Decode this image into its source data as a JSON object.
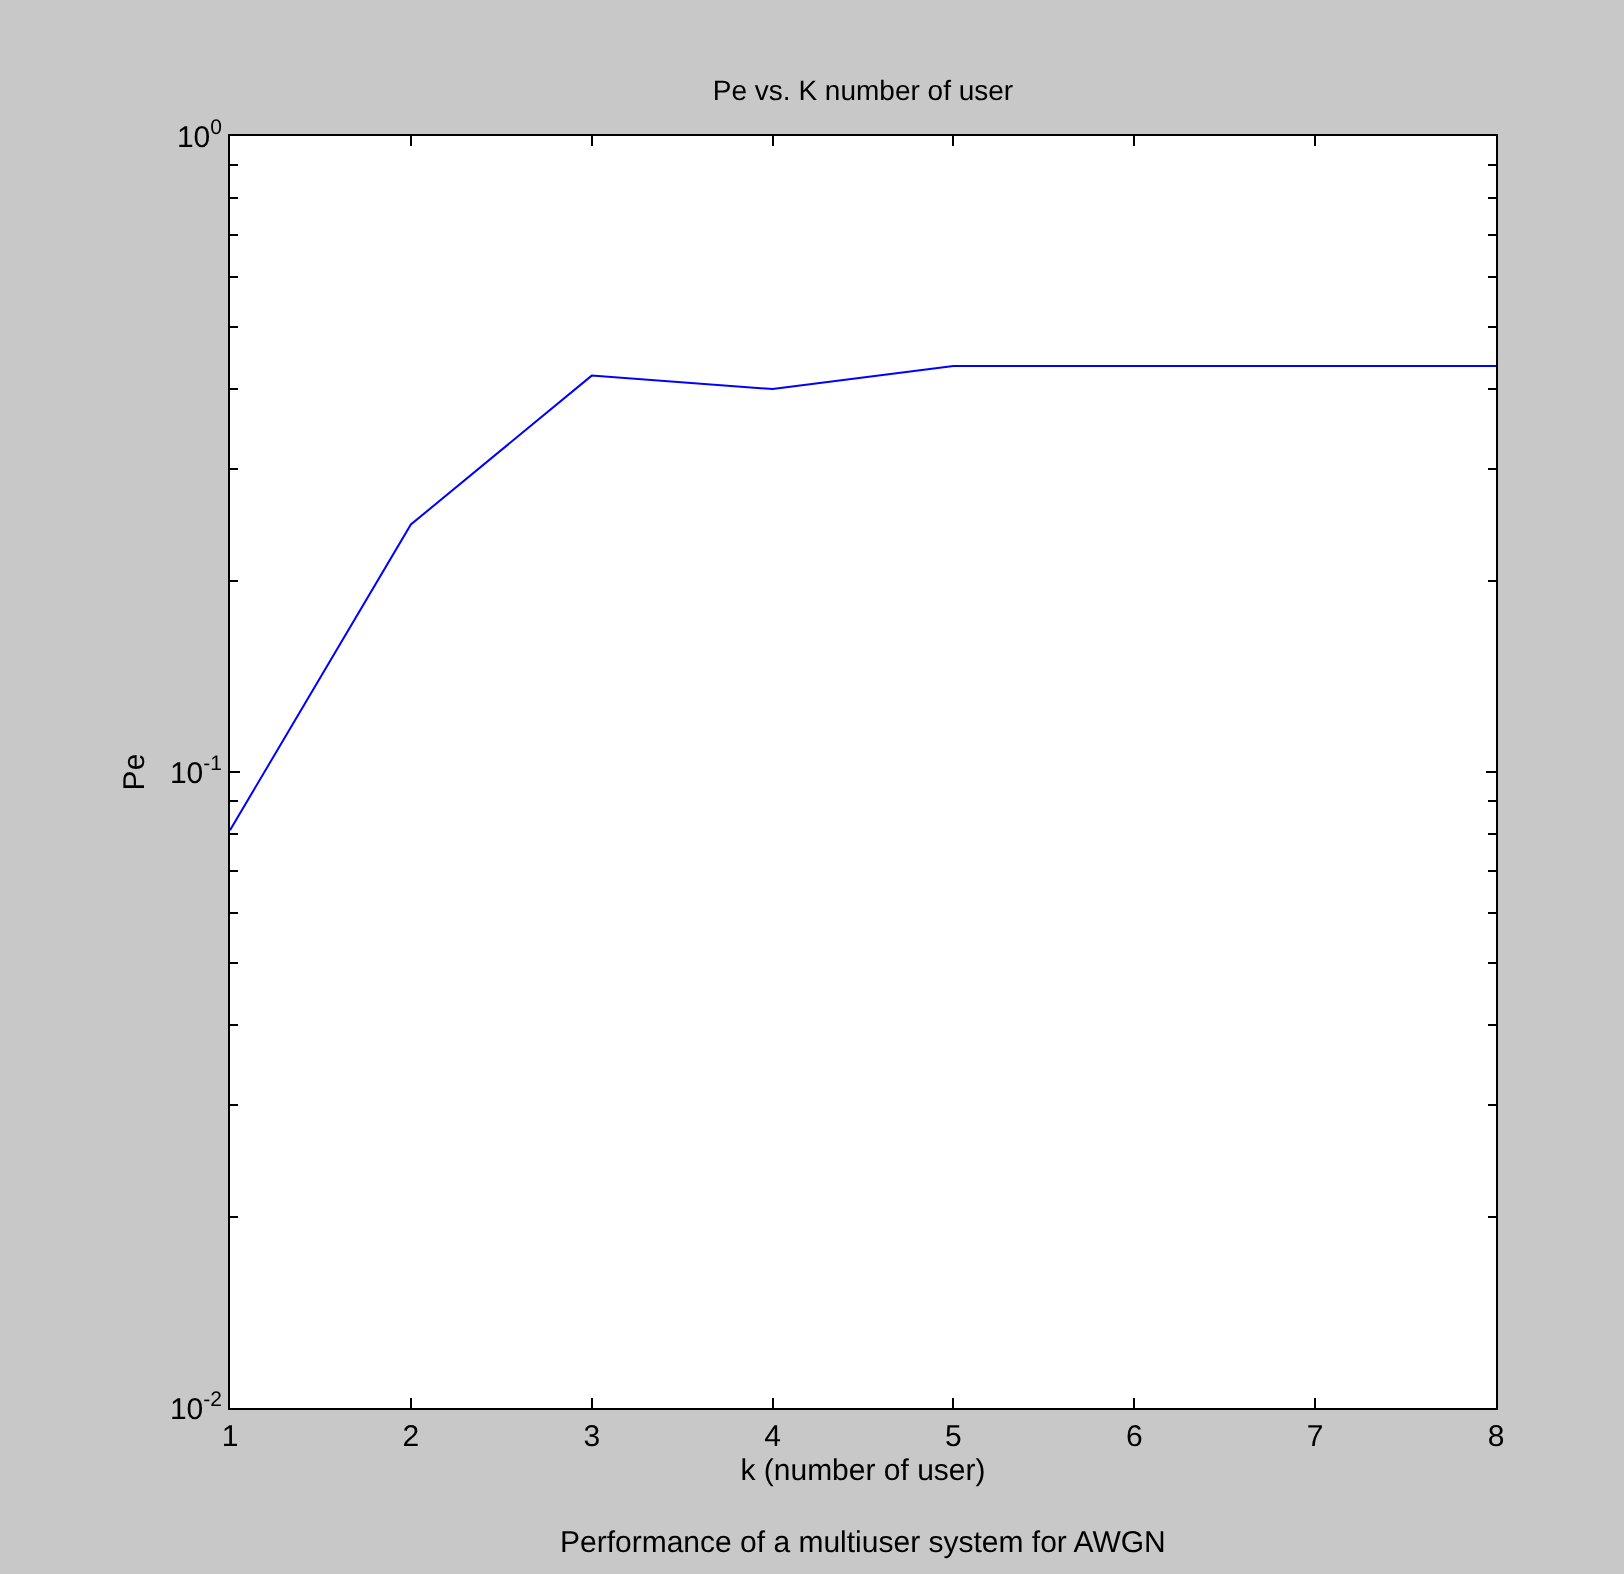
{
  "chart_data": {
    "type": "line",
    "title": "Pe vs. K number of user",
    "xlabel": "k (number of user)",
    "ylabel": "Pe",
    "annotations": [
      "Performance of a multiuser system for AWGN"
    ],
    "x": [
      1,
      2,
      3,
      4,
      5,
      6,
      7,
      8
    ],
    "series": [
      {
        "color": "#0000ff",
        "values": [
          0.081,
          0.245,
          0.42,
          0.4,
          0.435,
          0.435,
          0.435,
          0.435
        ]
      }
    ],
    "log": true,
    "marker": "none",
    "line_style": "solid",
    "xlim": [
      1,
      8
    ],
    "xticks": [
      1,
      2,
      3,
      4,
      5,
      6,
      7,
      8
    ],
    "ylim": [
      0.01,
      1
    ],
    "yticks": [
      {
        "value": 0.01,
        "label": "10$^{-2}$"
      },
      {
        "value": 0.1,
        "label": "10$^{-1}$"
      },
      {
        "value": 1,
        "label": "10$^{0}$"
      }
    ]
  }
}
